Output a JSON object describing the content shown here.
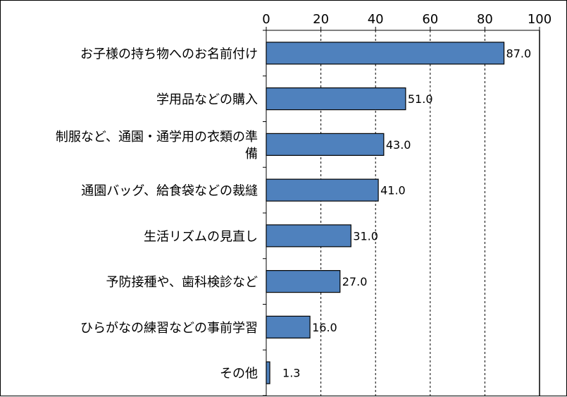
{
  "chart_data": {
    "type": "bar",
    "orientation": "horizontal",
    "categories": [
      "お子様の持ち物へのお名前付け",
      "学用品などの購入",
      "制服など、通園・通学用の衣類の準備",
      "通園バッグ、給食袋などの裁縫",
      "生活リズムの見直し",
      "予防接種や、歯科検診など",
      "ひらがなの練習などの事前学習",
      "その他"
    ],
    "category_lines": [
      [
        "お子様の持ち物へのお名前付け"
      ],
      [
        "学用品などの購入"
      ],
      [
        "制服など、通園・通学用の衣類の準",
        "備"
      ],
      [
        "通園バッグ、給食袋などの裁縫"
      ],
      [
        "生活リズムの見直し"
      ],
      [
        "予防接種や、歯科検診など"
      ],
      [
        "ひらがなの練習などの事前学習"
      ],
      [
        "その他"
      ]
    ],
    "values": [
      87.0,
      51.0,
      43.0,
      41.0,
      31.0,
      27.0,
      16.0,
      1.3
    ],
    "value_labels": [
      "87.0",
      "51.0",
      "43.0",
      "41.0",
      "31.0",
      "27.0",
      "16.0",
      "1.3"
    ],
    "xlim": [
      0,
      100
    ],
    "x_ticks": [
      0,
      20,
      40,
      60,
      80,
      100
    ],
    "x_tick_labels": [
      "0",
      "20",
      "40",
      "60",
      "80",
      "100"
    ],
    "x_axis_position": "top",
    "grid": "vertical dashed",
    "bar_color": "#4F81BD",
    "bar_edge_color": "#000000",
    "title": "",
    "xlabel": "",
    "ylabel": ""
  }
}
